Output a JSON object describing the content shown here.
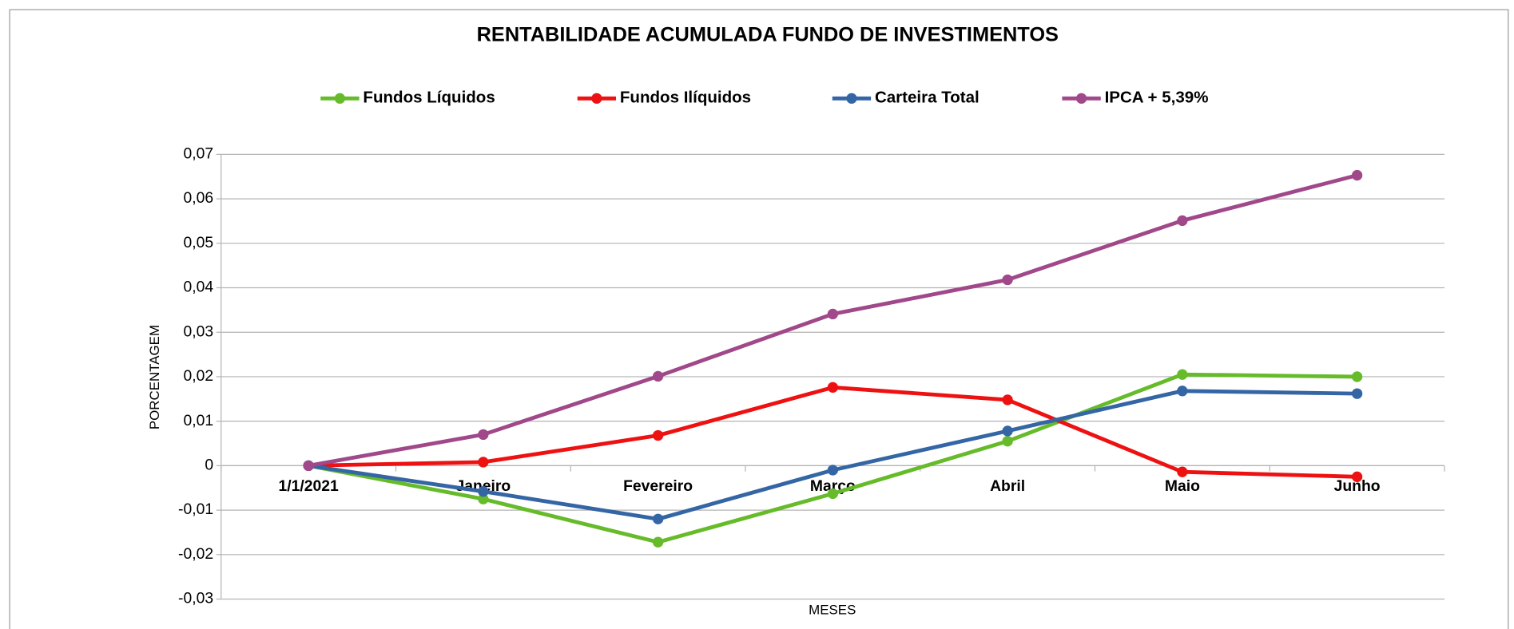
{
  "chart_data": {
    "type": "line",
    "title": "RENTABILIDADE ACUMULADA FUNDO DE INVESTIMENTOS",
    "xlabel": "MESES",
    "ylabel": "PORCENTAGEM",
    "categories": [
      "1/1/2021",
      "Janeiro",
      "Fevereiro",
      "Março",
      "Abril",
      "Maio",
      "Junho"
    ],
    "series": [
      {
        "name": "Fundos Líquidos",
        "color": "#66bb2a",
        "values": [
          0,
          -0.0075,
          -0.0172,
          -0.0063,
          0.0055,
          0.0205,
          0.02
        ]
      },
      {
        "name": "Fundos Ilíquidos",
        "color": "#ee1111",
        "values": [
          0,
          0.0008,
          0.0068,
          0.0176,
          0.0148,
          -0.0014,
          -0.0025
        ]
      },
      {
        "name": "Carteira Total",
        "color": "#3465a4",
        "values": [
          0,
          -0.0058,
          -0.012,
          -0.001,
          0.0078,
          0.0168,
          0.0162
        ]
      },
      {
        "name": "IPCA + 5,39%",
        "color": "#a0488a",
        "values": [
          0,
          0.007,
          0.0201,
          0.0341,
          0.0418,
          0.0551,
          0.0653
        ]
      }
    ],
    "ylim": [
      -0.03,
      0.07
    ],
    "yticks": [
      {
        "value": -0.03,
        "label": "-0,03"
      },
      {
        "value": -0.02,
        "label": "-0,02"
      },
      {
        "value": -0.01,
        "label": "-0,01"
      },
      0,
      {
        "value": 0.01,
        "label": "0,01"
      },
      {
        "value": 0.02,
        "label": "0,02"
      },
      {
        "value": 0.03,
        "label": "0,03"
      },
      {
        "value": 0.04,
        "label": "0,04"
      },
      {
        "value": 0.05,
        "label": "0,05"
      },
      {
        "value": 0.06,
        "label": "0,06"
      },
      {
        "value": 0.07,
        "label": "0,07"
      }
    ],
    "grid": true,
    "legend": "top"
  }
}
